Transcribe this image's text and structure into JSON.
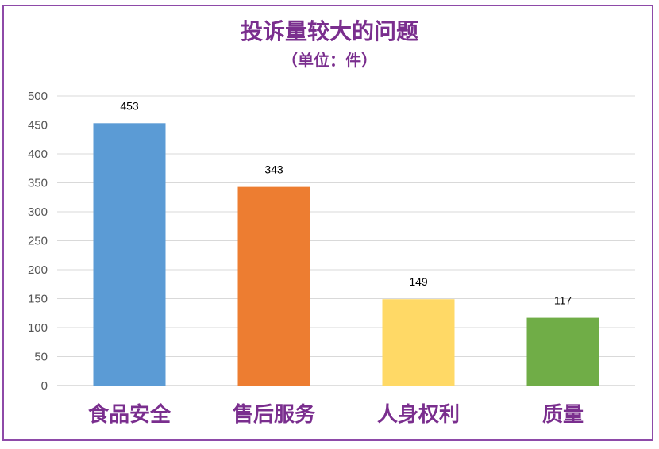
{
  "chart_data": {
    "type": "bar",
    "title": "投诉量较大的问题",
    "subtitle": "（单位：件）",
    "categories": [
      "食品安全",
      "售后服务",
      "人身权利",
      "质量"
    ],
    "values": [
      453,
      343,
      149,
      117
    ],
    "data_labels": [
      "453",
      "343",
      "149",
      "117"
    ],
    "colors": [
      "#5b9bd5",
      "#ed7d31",
      "#ffd966",
      "#70ad47"
    ],
    "ylim": [
      0,
      500
    ],
    "yticks": [
      0,
      50,
      100,
      150,
      200,
      250,
      300,
      350,
      400,
      450,
      500
    ],
    "grid": true,
    "legend": "none"
  }
}
